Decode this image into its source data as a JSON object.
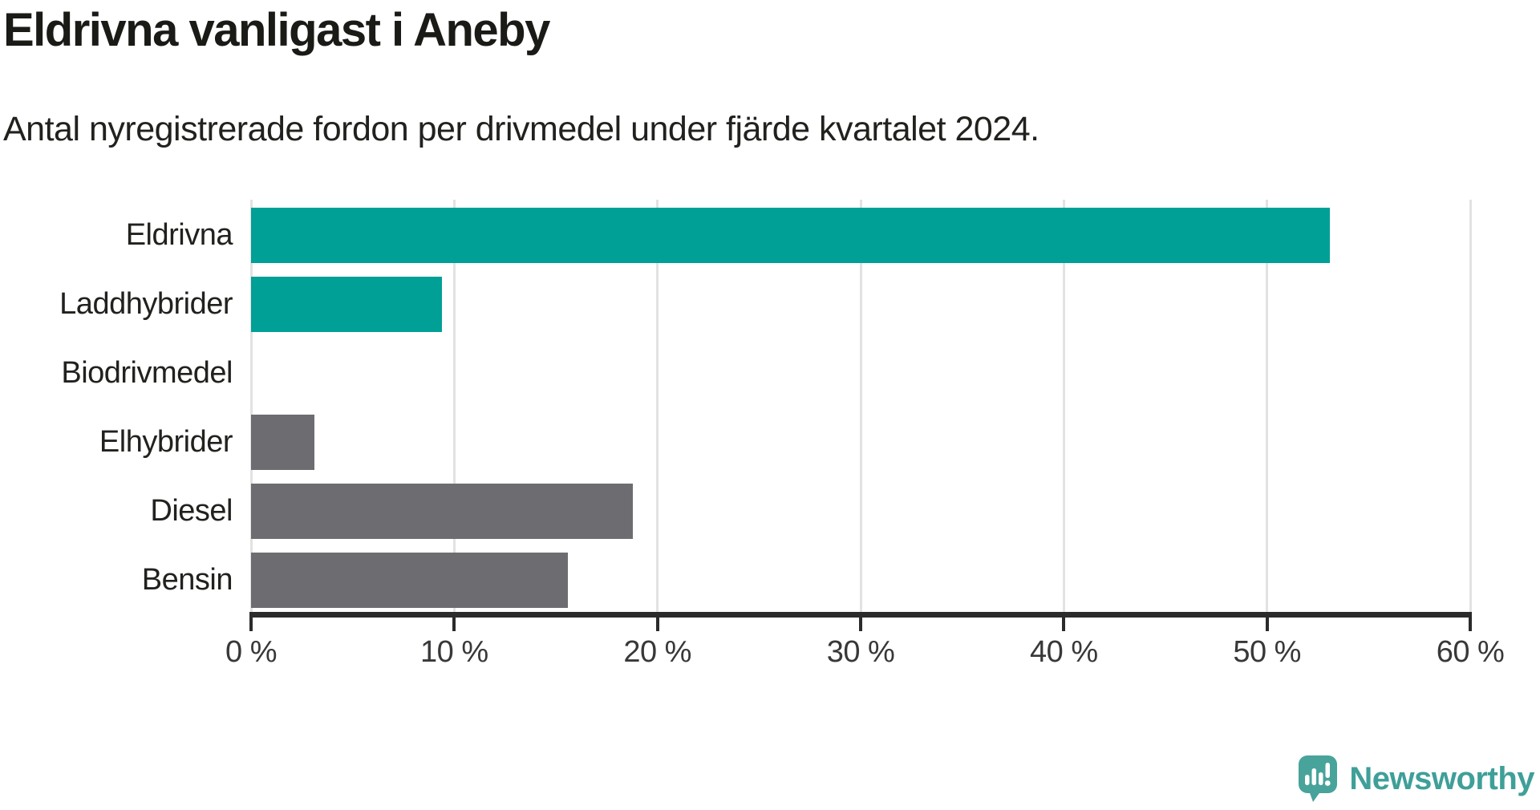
{
  "header": {
    "title": "Eldrivna vanligast i Aneby",
    "subtitle": "Antal nyregistrerade fordon per drivmedel under fjärde kvartalet 2024."
  },
  "chart_data": {
    "type": "bar",
    "orientation": "horizontal",
    "title": "Eldrivna vanligast i Aneby",
    "subtitle": "Antal nyregistrerade fordon per drivmedel under fjärde kvartalet 2024.",
    "categories": [
      "Eldrivna",
      "Laddhybrider",
      "Biodrivmedel",
      "Elhybrider",
      "Diesel",
      "Bensin"
    ],
    "values": [
      53.1,
      9.4,
      0,
      3.1,
      18.8,
      15.6
    ],
    "unit": "%",
    "bar_colors": [
      "#00a096",
      "#00a096",
      "#00a096",
      "#6d6d71",
      "#6d6d71",
      "#6d6d71"
    ],
    "xlim": [
      0,
      60
    ],
    "x_ticks": [
      0,
      10,
      20,
      30,
      40,
      50,
      60
    ],
    "x_tick_labels": [
      "0 %",
      "10 %",
      "20 %",
      "30 %",
      "40 %",
      "50 %",
      "60 %"
    ],
    "grid": true,
    "legend": false,
    "xlabel": "",
    "ylabel": ""
  },
  "colors": {
    "teal": "#00a096",
    "gray": "#6d6d71",
    "grid": "#e2e2e2",
    "axis": "#2b2b2b",
    "text": "#21211e",
    "tick_text": "#38383a"
  },
  "branding": {
    "name": "Newsworthy",
    "logo_color": "#48a39b",
    "text_color": "#3f9f99"
  }
}
